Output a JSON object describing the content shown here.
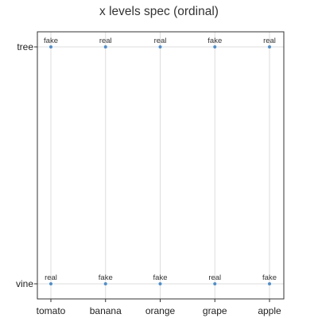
{
  "chart_data": {
    "type": "scatter",
    "title": "x levels spec (ordinal)",
    "xlabel": "",
    "ylabel": "",
    "x_categories": [
      "tomato",
      "banana",
      "orange",
      "grape",
      "apple"
    ],
    "y_categories": [
      "vine",
      "tree"
    ],
    "grid": true,
    "point_color": "#4c8fd1",
    "points": [
      {
        "x": "tomato",
        "y": "tree",
        "label": "fake"
      },
      {
        "x": "banana",
        "y": "tree",
        "label": "real"
      },
      {
        "x": "orange",
        "y": "tree",
        "label": "real"
      },
      {
        "x": "grape",
        "y": "tree",
        "label": "fake"
      },
      {
        "x": "apple",
        "y": "tree",
        "label": "real"
      },
      {
        "x": "tomato",
        "y": "vine",
        "label": "real"
      },
      {
        "x": "banana",
        "y": "vine",
        "label": "fake"
      },
      {
        "x": "orange",
        "y": "vine",
        "label": "fake"
      },
      {
        "x": "grape",
        "y": "vine",
        "label": "real"
      },
      {
        "x": "apple",
        "y": "vine",
        "label": "fake"
      }
    ]
  }
}
